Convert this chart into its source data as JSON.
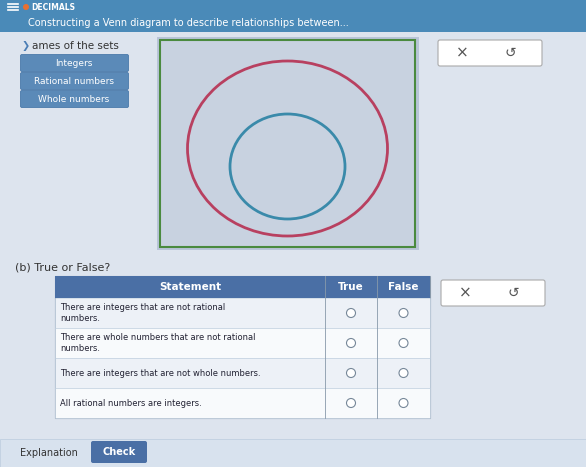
{
  "title_top": "DECIMALS",
  "title_main": "Constructing a Venn diagram to describe relationships between...",
  "section_a_label": "ames of the sets",
  "set_labels": [
    "Integers",
    "Rational numbers",
    "Whole numbers"
  ],
  "venn_bg": "#c8d2e0",
  "venn_border": "#4a8a3f",
  "outer_circle_color": "#b84060",
  "inner_circle_color": "#3a8aaa",
  "section_b_label": "(b) True or False?",
  "table_header_bg": "#4a6fa5",
  "table_header_color": "#ffffff",
  "table_header": [
    "Statement",
    "True",
    "False"
  ],
  "statements": [
    "There are integers that are not rational\nnumbers.",
    "There are whole numbers that are not rational\nnumbers.",
    "There are integers that are not whole numbers.",
    "All rational numbers are integers."
  ],
  "bg_color": "#cdd5e0",
  "header_bg": "#4a8ab8",
  "header_text": "#ffffff",
  "btn_check_bg": "#4a6fa5",
  "btn_check_color": "#ffffff",
  "btn_label_bg": "#5b8ab8",
  "content_bg": "#dde4ee"
}
